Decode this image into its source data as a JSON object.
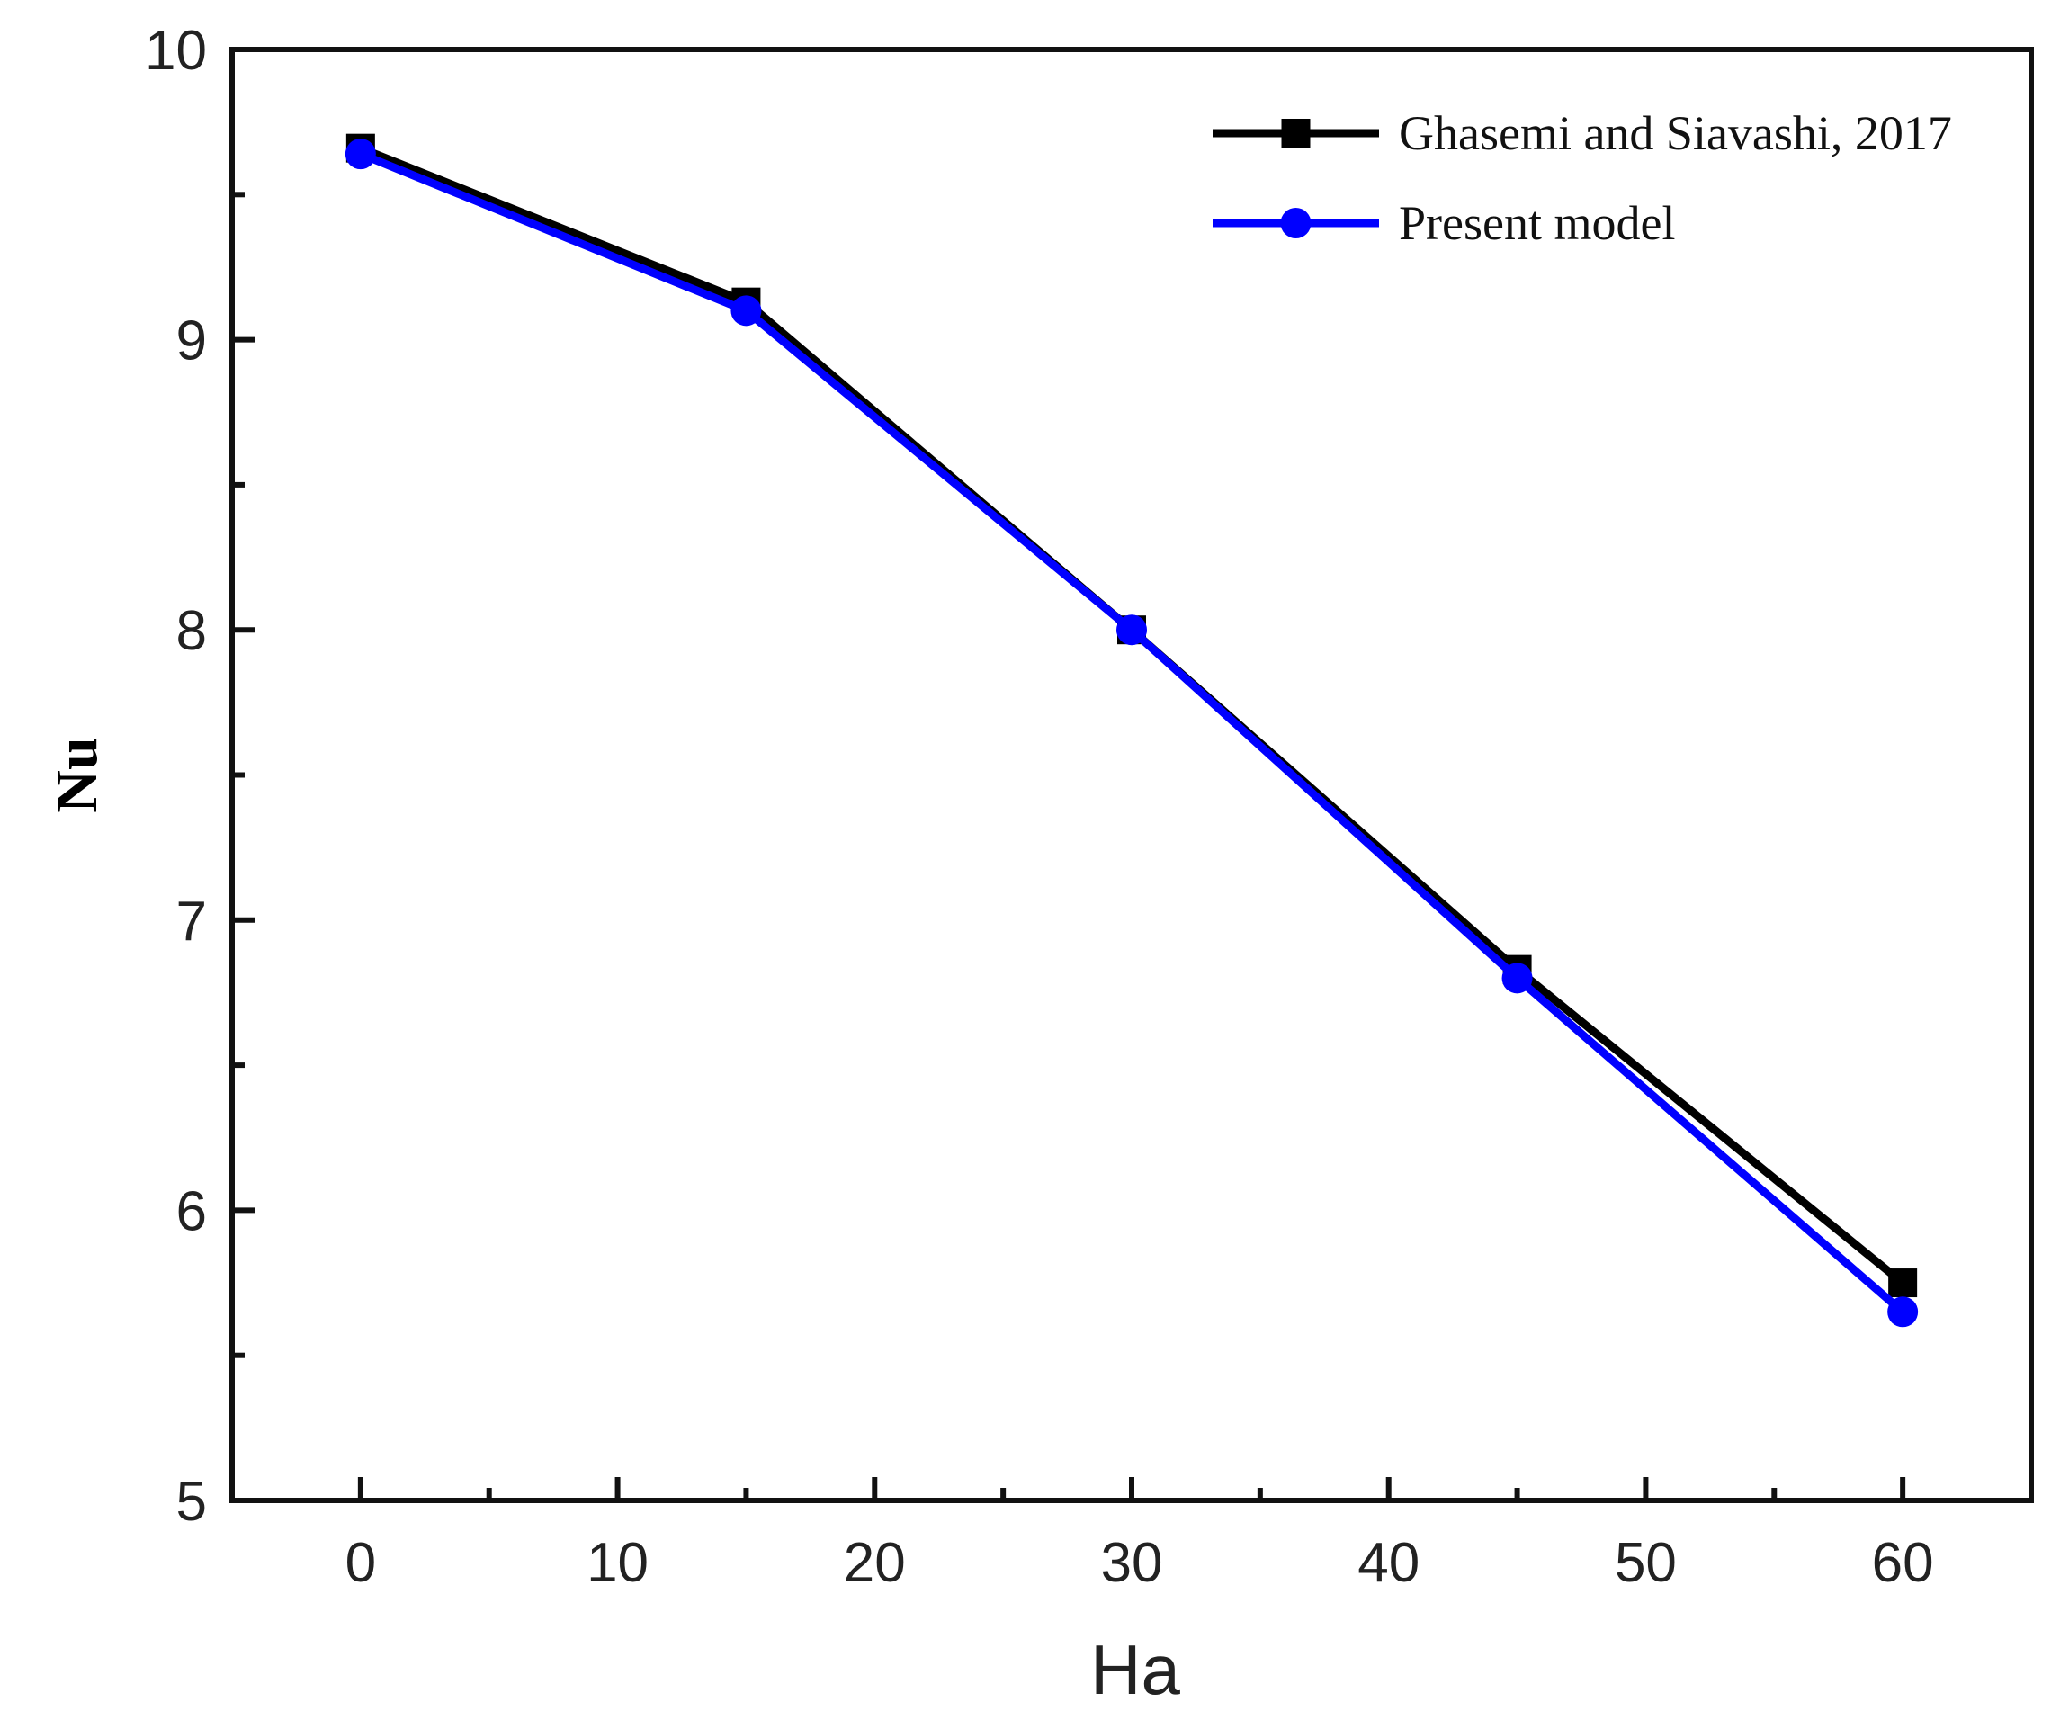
{
  "chart_data": {
    "type": "line",
    "title": "",
    "xlabel": "Ha",
    "ylabel": "Nu",
    "xlim": [
      -5,
      65
    ],
    "ylim": [
      5,
      10
    ],
    "xticks": [
      0,
      10,
      20,
      30,
      40,
      50,
      60
    ],
    "yticks": [
      5,
      6,
      7,
      8,
      9,
      10
    ],
    "grid": false,
    "legend_position": "top-right",
    "series": [
      {
        "name": "Ghasemi and  Siavashi, 2017",
        "color": "#000000",
        "marker": "square",
        "x": [
          0,
          15,
          30,
          45,
          60
        ],
        "y": [
          9.66,
          9.13,
          8.0,
          6.83,
          5.75
        ]
      },
      {
        "name": "Present model",
        "color": "#0000ff",
        "marker": "circle",
        "x": [
          0,
          15,
          30,
          45,
          60
        ],
        "y": [
          9.64,
          9.1,
          8.0,
          6.8,
          5.65
        ]
      }
    ]
  }
}
